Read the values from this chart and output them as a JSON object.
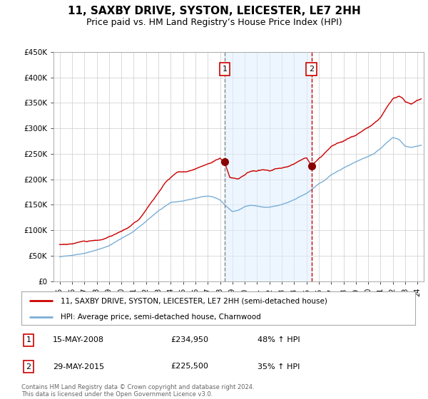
{
  "title": "11, SAXBY DRIVE, SYSTON, LEICESTER, LE7 2HH",
  "subtitle": "Price paid vs. HM Land Registry’s House Price Index (HPI)",
  "title_fontsize": 11,
  "subtitle_fontsize": 9,
  "background_color": "#ffffff",
  "plot_bg_color": "#ffffff",
  "grid_color": "#cccccc",
  "red_line_color": "#cc0000",
  "blue_line_color": "#7aaed6",
  "vline1_color": "#888888",
  "vline2_color": "#cc0000",
  "shade_color": "#ddeeff",
  "shade_alpha": 0.5,
  "ylim": [
    0,
    450000
  ],
  "yticks": [
    0,
    50000,
    100000,
    150000,
    200000,
    250000,
    300000,
    350000,
    400000,
    450000
  ],
  "ytick_labels": [
    "£0",
    "£50K",
    "£100K",
    "£150K",
    "£200K",
    "£250K",
    "£300K",
    "£350K",
    "£400K",
    "£450K"
  ],
  "event1_x": 2008.37,
  "event1_y": 234950,
  "event1_label": "1",
  "event1_date": "15-MAY-2008",
  "event1_price": "£234,950",
  "event1_hpi": "48% ↑ HPI",
  "event2_x": 2015.41,
  "event2_y": 225500,
  "event2_label": "2",
  "event2_date": "29-MAY-2015",
  "event2_price": "£225,500",
  "event2_hpi": "35% ↑ HPI",
  "legend_line1": "11, SAXBY DRIVE, SYSTON, LEICESTER, LE7 2HH (semi-detached house)",
  "legend_line2": "HPI: Average price, semi-detached house, Charnwood",
  "footer": "Contains HM Land Registry data © Crown copyright and database right 2024.\nThis data is licensed under the Open Government Licence v3.0.",
  "xlim_min": 1995.0,
  "xlim_max": 2024.5,
  "xtick_years": [
    1995,
    1996,
    1997,
    1998,
    1999,
    2000,
    2001,
    2002,
    2003,
    2004,
    2005,
    2006,
    2007,
    2008,
    2009,
    2010,
    2011,
    2012,
    2013,
    2014,
    2015,
    2016,
    2017,
    2018,
    2019,
    2020,
    2021,
    2022,
    2023,
    2024
  ]
}
